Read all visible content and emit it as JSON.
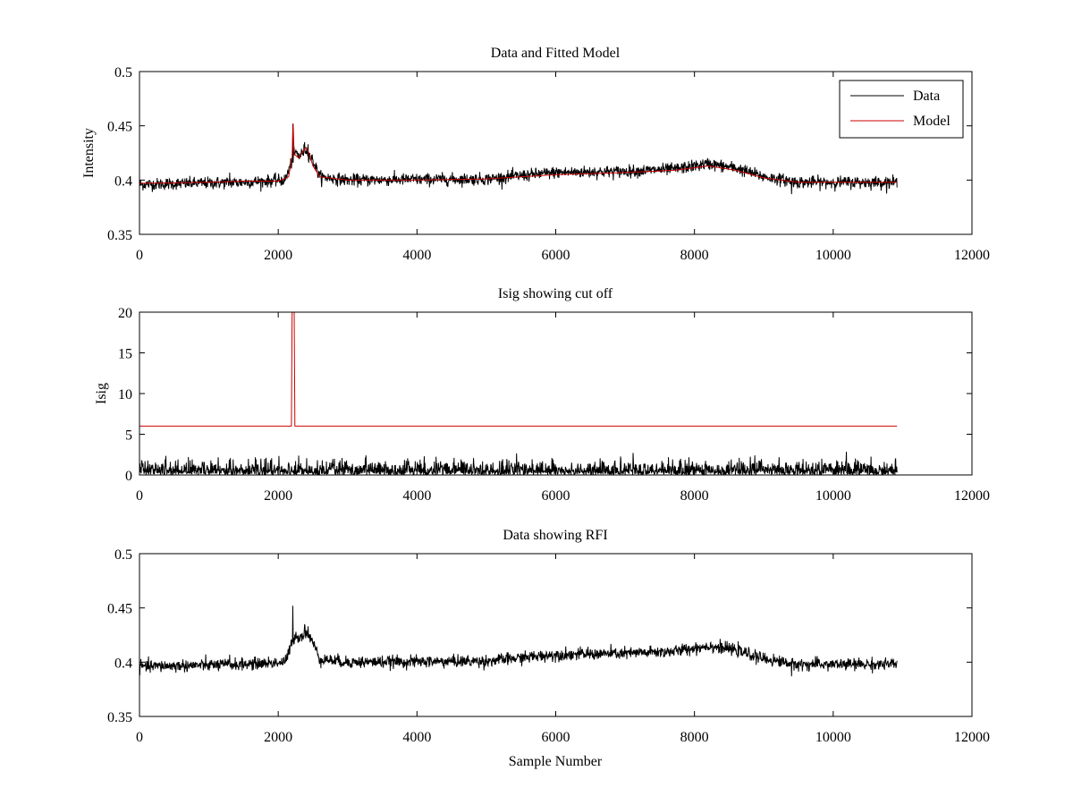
{
  "figure": {
    "background": "#ffffff"
  },
  "chart_data": [
    {
      "type": "line",
      "title": "Data and Fitted Model",
      "xlabel": "",
      "ylabel": "Intensity",
      "xlim": [
        0,
        12000
      ],
      "ylim": [
        0.35,
        0.5
      ],
      "xticks": [
        0,
        2000,
        4000,
        6000,
        8000,
        10000,
        12000
      ],
      "xtick_labels": [
        "0",
        "2000",
        "4000",
        "6000",
        "8000",
        "10000",
        "12000"
      ],
      "yticks": [
        0.35,
        0.4,
        0.45,
        0.5
      ],
      "ytick_labels": [
        "0.35",
        "0.4",
        "0.45",
        "0.5"
      ],
      "legend": {
        "placement": "top-right",
        "entries": [
          "Data",
          "Model"
        ]
      },
      "series": [
        {
          "name": "Data",
          "color": "#000000",
          "kind": "noisy",
          "noise": 0.005,
          "x_end": 10920,
          "baseline": [
            [
              0,
              0.396
            ],
            [
              1500,
              0.398
            ],
            [
              2100,
              0.4
            ],
            [
              2200,
              0.418
            ],
            [
              2250,
              0.426
            ],
            [
              2300,
              0.422
            ],
            [
              2400,
              0.428
            ],
            [
              2500,
              0.418
            ],
            [
              2600,
              0.403
            ],
            [
              3000,
              0.4
            ],
            [
              5000,
              0.401
            ],
            [
              6000,
              0.407
            ],
            [
              7000,
              0.408
            ],
            [
              7700,
              0.41
            ],
            [
              8200,
              0.415
            ],
            [
              8600,
              0.411
            ],
            [
              9000,
              0.403
            ],
            [
              9500,
              0.398
            ],
            [
              10920,
              0.398
            ]
          ],
          "spikes": [
            [
              2210,
              0.452
            ],
            [
              2380,
              0.435
            ],
            [
              2430,
              0.433
            ],
            [
              9400,
              0.387
            ],
            [
              1300,
              0.407
            ]
          ]
        },
        {
          "name": "Model",
          "color": "#cc0000",
          "kind": "smooth",
          "x_end": 10920,
          "points": [
            [
              0,
              0.397
            ],
            [
              1000,
              0.398
            ],
            [
              1500,
              0.399
            ],
            [
              2000,
              0.399
            ],
            [
              2150,
              0.403
            ],
            [
              2200,
              0.421
            ],
            [
              2215,
              0.452
            ],
            [
              2230,
              0.424
            ],
            [
              2300,
              0.42
            ],
            [
              2350,
              0.426
            ],
            [
              2400,
              0.43
            ],
            [
              2450,
              0.424
            ],
            [
              2500,
              0.413
            ],
            [
              2600,
              0.403
            ],
            [
              3000,
              0.4
            ],
            [
              4000,
              0.4
            ],
            [
              5000,
              0.401
            ],
            [
              6000,
              0.405
            ],
            [
              7000,
              0.407
            ],
            [
              7700,
              0.409
            ],
            [
              8200,
              0.413
            ],
            [
              8600,
              0.409
            ],
            [
              9000,
              0.402
            ],
            [
              9500,
              0.398
            ],
            [
              10920,
              0.398
            ]
          ]
        }
      ]
    },
    {
      "type": "line",
      "title": "Isig showing cut off",
      "xlabel": "",
      "ylabel": "Isig",
      "xlim": [
        0,
        12000
      ],
      "ylim": [
        0,
        20
      ],
      "xticks": [
        0,
        2000,
        4000,
        6000,
        8000,
        10000,
        12000
      ],
      "xtick_labels": [
        "0",
        "2000",
        "4000",
        "6000",
        "8000",
        "10000",
        "12000"
      ],
      "yticks": [
        0,
        5,
        10,
        15,
        20
      ],
      "ytick_labels": [
        "0",
        "5",
        "10",
        "15",
        "20"
      ],
      "series": [
        {
          "name": "Isig",
          "color": "#000000",
          "kind": "abs-noise",
          "x_end": 10920,
          "scale": 1.0,
          "ymax": 3.8
        },
        {
          "name": "Cut off",
          "color": "#cc0000",
          "kind": "smooth",
          "x_end": 10920,
          "points": [
            [
              0,
              6
            ],
            [
              2190,
              6
            ],
            [
              2200,
              20
            ],
            [
              2230,
              20
            ],
            [
              2240,
              6
            ],
            [
              10920,
              6
            ]
          ]
        }
      ]
    },
    {
      "type": "line",
      "title": "Data showing RFI",
      "xlabel": "Sample Number",
      "ylabel": "",
      "xlim": [
        0,
        12000
      ],
      "ylim": [
        0.35,
        0.5
      ],
      "xticks": [
        0,
        2000,
        4000,
        6000,
        8000,
        10000,
        12000
      ],
      "xtick_labels": [
        "0",
        "2000",
        "4000",
        "6000",
        "8000",
        "10000",
        "12000"
      ],
      "yticks": [
        0.35,
        0.4,
        0.45,
        0.5
      ],
      "ytick_labels": [
        "0.35",
        "0.4",
        "0.45",
        "0.5"
      ],
      "series": [
        {
          "name": "Data",
          "color": "#000000",
          "kind": "noisy",
          "noise": 0.005,
          "x_end": 10920,
          "baseline": [
            [
              0,
              0.396
            ],
            [
              1500,
              0.398
            ],
            [
              2100,
              0.4
            ],
            [
              2200,
              0.418
            ],
            [
              2250,
              0.426
            ],
            [
              2300,
              0.422
            ],
            [
              2400,
              0.428
            ],
            [
              2500,
              0.418
            ],
            [
              2600,
              0.403
            ],
            [
              3000,
              0.4
            ],
            [
              5000,
              0.401
            ],
            [
              6000,
              0.407
            ],
            [
              7000,
              0.408
            ],
            [
              7700,
              0.41
            ],
            [
              8200,
              0.415
            ],
            [
              8600,
              0.411
            ],
            [
              9000,
              0.403
            ],
            [
              9500,
              0.398
            ],
            [
              10920,
              0.398
            ]
          ],
          "spikes": [
            [
              2210,
              0.452
            ],
            [
              2380,
              0.435
            ],
            [
              2430,
              0.433
            ],
            [
              9400,
              0.387
            ],
            [
              1300,
              0.407
            ]
          ]
        }
      ]
    }
  ]
}
